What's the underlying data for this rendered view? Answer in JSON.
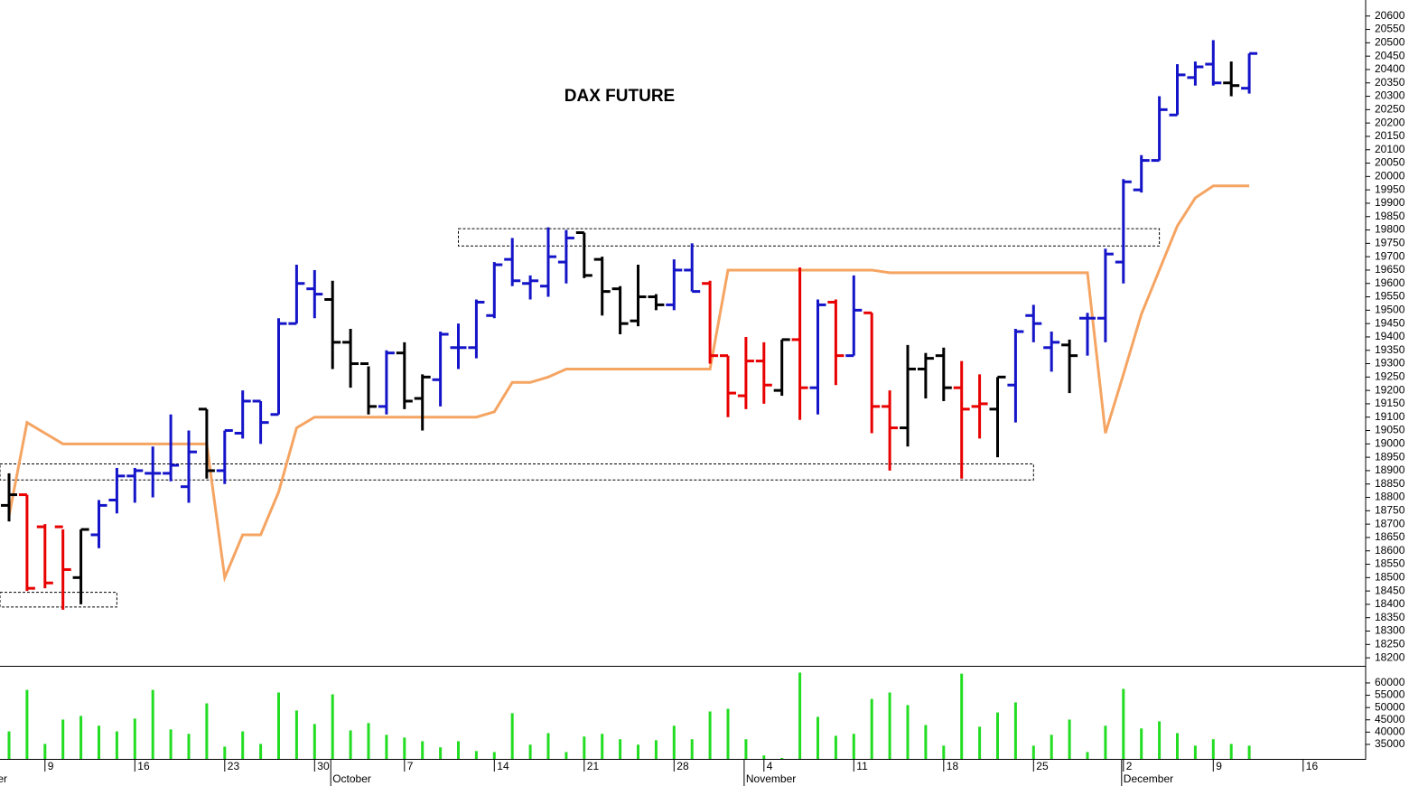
{
  "chart_data": {
    "type": "ohlc",
    "title": "DAX FUTURE",
    "categories": [
      null,
      null,
      "9",
      null,
      null,
      null,
      null,
      "16",
      null,
      null,
      null,
      null,
      "23",
      null,
      null,
      null,
      null,
      "30",
      null,
      null,
      null,
      null,
      "7",
      null,
      null,
      null,
      null,
      "14",
      null,
      null,
      null,
      null,
      "21",
      null,
      null,
      null,
      null,
      "28",
      null,
      null,
      null,
      null,
      "4",
      null,
      null,
      null,
      null,
      "11",
      null,
      null,
      null,
      null,
      "18",
      null,
      null,
      null,
      null,
      "25",
      null,
      null,
      null,
      null,
      "2",
      null,
      null,
      null,
      null,
      "9",
      null,
      null,
      null,
      null,
      "16",
      null,
      null,
      null
    ],
    "months": [
      null,
      null,
      null,
      null,
      null,
      null,
      null,
      null,
      null,
      null,
      null,
      null,
      null,
      null,
      null,
      null,
      null,
      null,
      "October",
      null,
      null,
      null,
      null,
      null,
      null,
      null,
      null,
      null,
      null,
      null,
      null,
      null,
      null,
      null,
      null,
      null,
      null,
      null,
      null,
      null,
      null,
      "November",
      null,
      null,
      null,
      null,
      null,
      null,
      null,
      null,
      null,
      null,
      null,
      null,
      null,
      null,
      null,
      null,
      null,
      null,
      null,
      null,
      "December",
      null,
      null,
      null,
      null,
      null,
      null,
      null,
      null,
      null,
      null,
      null,
      null,
      null
    ],
    "month_cut": "er",
    "open": [
      18770,
      18810,
      18690,
      18690,
      18500,
      18660,
      18790,
      18880,
      18890,
      18890,
      18840,
      19130,
      18900,
      19040,
      19160,
      19110,
      19450,
      19580,
      19540,
      19380,
      19300,
      19140,
      19340,
      19170,
      19240,
      19360,
      19360,
      19480,
      19690,
      19600,
      19590,
      19680,
      19790,
      19690,
      19580,
      19460,
      19550,
      19520,
      19650,
      19600,
      19330,
      19180,
      19310,
      19200,
      19390,
      19210,
      19530,
      19330,
      19490,
      19140,
      19060,
      19280,
      19330,
      19210,
      19140,
      19130,
      19220,
      19480,
      19360,
      19370,
      19470,
      19470,
      19680,
      19950,
      20060,
      20230,
      20370,
      20420,
      20350,
      20330,
      null,
      null,
      null,
      null,
      null,
      null
    ],
    "high": [
      18890,
      18810,
      18700,
      18680,
      18680,
      18790,
      18910,
      18910,
      18990,
      19110,
      19050,
      19130,
      19050,
      19200,
      19160,
      19470,
      19670,
      19650,
      19610,
      19430,
      19290,
      19350,
      19380,
      19260,
      19420,
      19450,
      19540,
      19680,
      19770,
      19630,
      19810,
      19800,
      19790,
      19700,
      19590,
      19670,
      19560,
      19690,
      19750,
      19610,
      19330,
      19400,
      19380,
      19390,
      19660,
      19540,
      19540,
      19630,
      19490,
      19200,
      19370,
      19340,
      19360,
      19310,
      19260,
      19250,
      19430,
      19520,
      19420,
      19390,
      19490,
      19730,
      19990,
      20080,
      20300,
      20420,
      20430,
      20510,
      20430,
      20460,
      null,
      null,
      null,
      null,
      null,
      null
    ],
    "low": [
      18710,
      18450,
      18460,
      18380,
      18400,
      18610,
      18740,
      18780,
      18800,
      18860,
      18780,
      18870,
      18850,
      19020,
      19000,
      19110,
      19450,
      19470,
      19280,
      19210,
      19110,
      19110,
      19130,
      19050,
      19140,
      19280,
      19320,
      19470,
      19590,
      19540,
      19550,
      19600,
      19620,
      19480,
      19410,
      19440,
      19500,
      19500,
      19570,
      19300,
      19100,
      19130,
      19150,
      19180,
      19090,
      19110,
      19220,
      19330,
      19040,
      18900,
      18990,
      19170,
      19160,
      18870,
      19020,
      18950,
      19080,
      19380,
      19270,
      19190,
      19330,
      19380,
      19600,
      19940,
      20060,
      20230,
      20340,
      20340,
      20300,
      20310,
      null,
      null,
      null,
      null,
      null,
      null
    ],
    "close": [
      18810,
      18460,
      18480,
      18530,
      18680,
      18770,
      18880,
      18900,
      18890,
      18920,
      18970,
      18900,
      19050,
      19160,
      19080,
      19450,
      19600,
      19560,
      19380,
      19300,
      19140,
      19340,
      19160,
      19250,
      19410,
      19360,
      19530,
      19670,
      19610,
      19610,
      19700,
      19770,
      19630,
      19570,
      19450,
      19550,
      19520,
      19650,
      19570,
      19330,
      19190,
      19310,
      19220,
      19390,
      19210,
      19520,
      19330,
      19500,
      19140,
      19060,
      19280,
      19320,
      19210,
      19130,
      19150,
      19250,
      19420,
      19450,
      19380,
      19330,
      19470,
      19710,
      19980,
      20060,
      20250,
      20380,
      20410,
      20350,
      20340,
      20460,
      null,
      null,
      null,
      null,
      null,
      null
    ],
    "tone": [
      "black",
      "red",
      "red",
      "red",
      "black",
      "blue",
      "blue",
      "blue",
      "blue",
      "blue",
      "blue",
      "black",
      "blue",
      "blue",
      "blue",
      "blue",
      "blue",
      "blue",
      "black",
      "black",
      "black",
      "blue",
      "black",
      "black",
      "blue",
      "blue",
      "blue",
      "blue",
      "blue",
      "blue",
      "blue",
      "blue",
      "black",
      "black",
      "black",
      "black",
      "black",
      "blue",
      "blue",
      "red",
      "red",
      "red",
      "red",
      "black",
      "red",
      "blue",
      "red",
      "blue",
      "red",
      "red",
      "black",
      "black",
      "black",
      "red",
      "red",
      "black",
      "blue",
      "blue",
      "blue",
      "black",
      "blue",
      "blue",
      "blue",
      "blue",
      "blue",
      "blue",
      "blue",
      "blue",
      "black",
      "blue",
      null,
      null,
      null,
      null,
      null,
      null
    ],
    "tone_colors": {
      "blue": "#1414c8",
      "red": "#e80000",
      "black": "#000000"
    },
    "stop_line": {
      "color": "#f5a462",
      "values": [
        18730,
        19080,
        19040,
        19000,
        19000,
        19000,
        19000,
        19000,
        19000,
        19000,
        19000,
        19000,
        18500,
        18660,
        18660,
        18820,
        19060,
        19100,
        19100,
        19100,
        19100,
        19100,
        19100,
        19100,
        19100,
        19100,
        19100,
        19120,
        19230,
        19230,
        19250,
        19280,
        19280,
        19280,
        19280,
        19280,
        19280,
        19280,
        19280,
        19280,
        19650,
        19650,
        19650,
        19650,
        19650,
        19650,
        19650,
        19650,
        19650,
        19640,
        19640,
        19640,
        19640,
        19640,
        19640,
        19640,
        19640,
        19640,
        19640,
        19640,
        19640,
        19040,
        19260,
        19485,
        19650,
        19815,
        19920,
        19965,
        19965,
        19965,
        null,
        null,
        null,
        null,
        null,
        null
      ]
    },
    "zones": [
      {
        "ylim": [
          19740,
          19805
        ],
        "start": 25,
        "end": 64
      },
      {
        "ylim": [
          18865,
          18925
        ],
        "start": 0,
        "end": 57
      },
      {
        "ylim": [
          18390,
          18445
        ],
        "start": 0,
        "end": 6
      }
    ],
    "ylim": [
      18170,
      20660
    ],
    "yticks": [
      18200,
      18250,
      18300,
      18350,
      18400,
      18450,
      18500,
      18550,
      18600,
      18650,
      18700,
      18750,
      18800,
      18850,
      18900,
      18950,
      19000,
      19050,
      19100,
      19150,
      19200,
      19250,
      19300,
      19350,
      19400,
      19450,
      19500,
      19550,
      19600,
      19650,
      19700,
      19750,
      19800,
      19850,
      19900,
      19950,
      20000,
      20050,
      20100,
      20150,
      20200,
      20250,
      20300,
      20350,
      20400,
      20450,
      20500,
      20550,
      20600
    ],
    "volume": {
      "color": "#22dd22",
      "ylim": [
        29100,
        66600
      ],
      "yticks": [
        35000,
        40000,
        45000,
        50000,
        55000,
        60000
      ],
      "values": [
        40300,
        57200,
        35200,
        45100,
        46600,
        42600,
        40300,
        45500,
        57200,
        41100,
        39300,
        51700,
        34100,
        40300,
        35200,
        56100,
        48800,
        43300,
        55400,
        40700,
        43700,
        38900,
        37800,
        36300,
        33800,
        36300,
        32300,
        31900,
        47700,
        34900,
        39600,
        31900,
        38200,
        39300,
        37100,
        34900,
        36700,
        42600,
        37100,
        48400,
        49500,
        37100,
        30500,
        29500,
        64200,
        46200,
        38500,
        39300,
        53500,
        56100,
        51000,
        42900,
        34500,
        63800,
        42200,
        48000,
        52100,
        34500,
        38900,
        45100,
        31900,
        42600,
        57600,
        41500,
        44400,
        39600,
        34500,
        37100,
        35200,
        34500,
        null,
        null,
        null,
        null,
        null,
        null
      ]
    }
  }
}
